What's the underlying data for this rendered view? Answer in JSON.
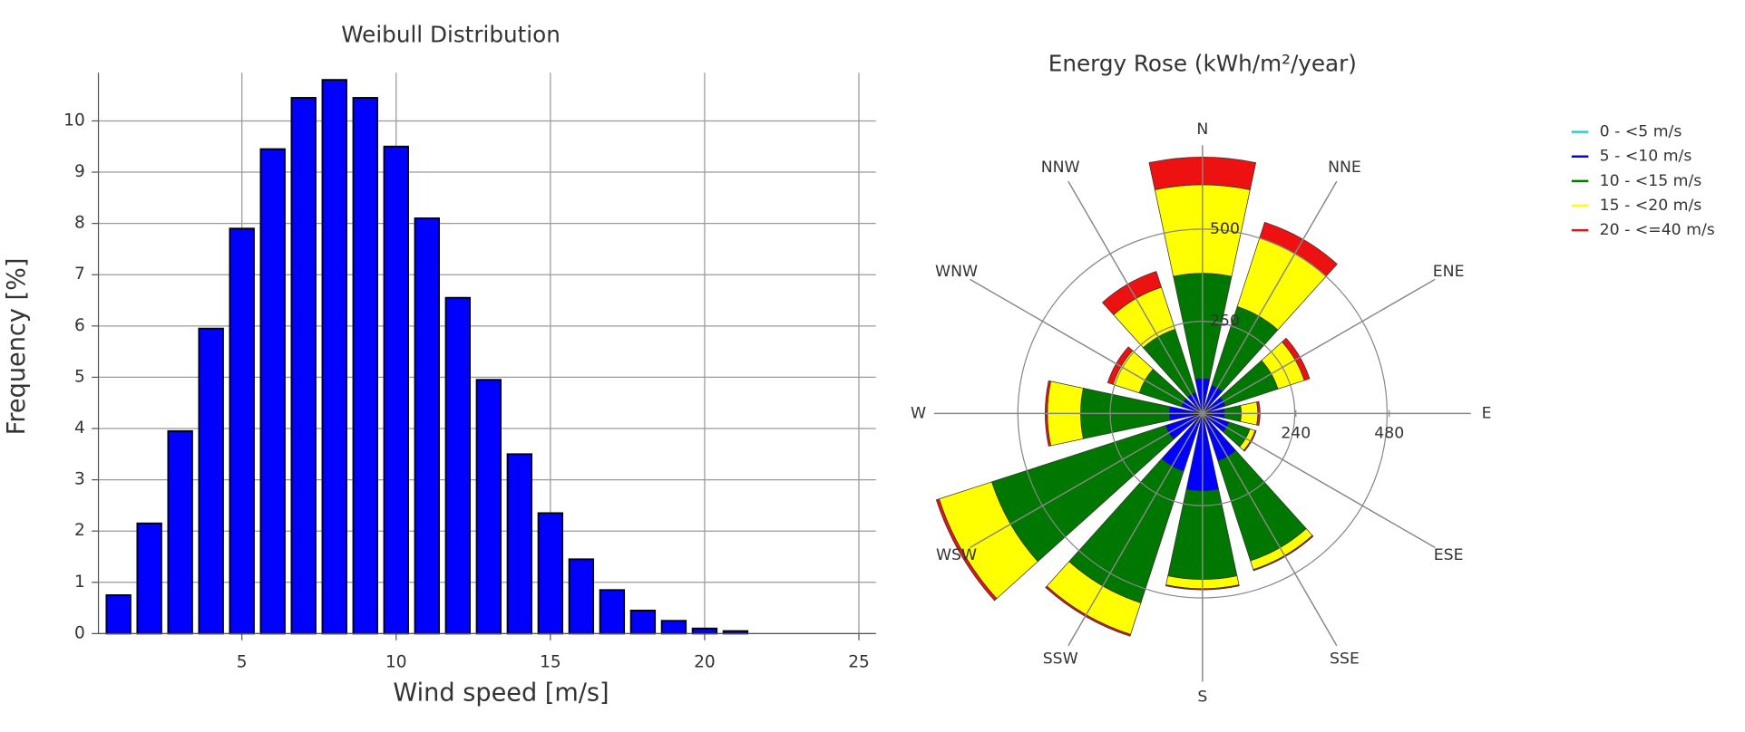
{
  "chart_data": [
    {
      "type": "bar",
      "title": "Weibull Distribution",
      "x_label": "Wind speed [m/s]",
      "y_label": "Frequency [%]",
      "x": [
        1,
        2,
        3,
        4,
        5,
        6,
        7,
        8,
        9,
        10,
        11,
        12,
        13,
        14,
        15,
        16,
        17,
        18,
        19,
        20,
        21
      ],
      "values": [
        0.75,
        2.15,
        3.95,
        5.95,
        7.9,
        9.45,
        10.45,
        10.8,
        10.45,
        9.5,
        8.1,
        6.55,
        4.95,
        3.5,
        2.35,
        1.45,
        0.85,
        0.45,
        0.25,
        0.1,
        0.05
      ],
      "color": "#0000ff",
      "xlim": [
        0.35,
        25.55
      ],
      "xticks": [
        5,
        10,
        15,
        20,
        25
      ],
      "ylim": [
        0,
        10.94
      ],
      "yticks": [
        0,
        1,
        2,
        3,
        4,
        5,
        6,
        7,
        8,
        9,
        10
      ],
      "grid": true
    },
    {
      "type": "rose",
      "title": "Energy Rose (kWh/m²/year)",
      "categories": [
        "N",
        "NNE",
        "ENE",
        "E",
        "ESE",
        "SSE",
        "S",
        "SSW",
        "WSW",
        "W",
        "WNW",
        "NNW"
      ],
      "series": [
        {
          "name": "0 - <5 m/s",
          "color": "#33cccc",
          "values": [
            5,
            5,
            5,
            5,
            5,
            5,
            5,
            5,
            5,
            5,
            5,
            5
          ]
        },
        {
          "name": "5 - <10 m/s",
          "color": "#0000ff",
          "values": [
            90,
            75,
            60,
            55,
            70,
            130,
            205,
            160,
            100,
            85,
            55,
            55
          ]
        },
        {
          "name": "10 - <15 m/s",
          "color": "#007700",
          "values": [
            285,
            225,
            150,
            45,
            60,
            285,
            240,
            375,
            495,
            240,
            120,
            180
          ]
        },
        {
          "name": "15 - <20 m/s",
          "color": "#ffff00",
          "values": [
            240,
            195,
            75,
            45,
            15,
            25,
            25,
            90,
            150,
            90,
            75,
            120
          ]
        },
        {
          "name": "20 - <=40 m/s",
          "color": "#ee1111",
          "values": [
            75,
            45,
            15,
            6,
            3,
            3,
            3,
            5,
            8,
            6,
            15,
            45
          ]
        }
      ],
      "rlim": [
        0,
        727
      ],
      "rticks": [
        250,
        500
      ],
      "r2lim": [
        0,
        690
      ],
      "r2ticks": [
        240,
        480
      ],
      "legend": "right"
    }
  ]
}
